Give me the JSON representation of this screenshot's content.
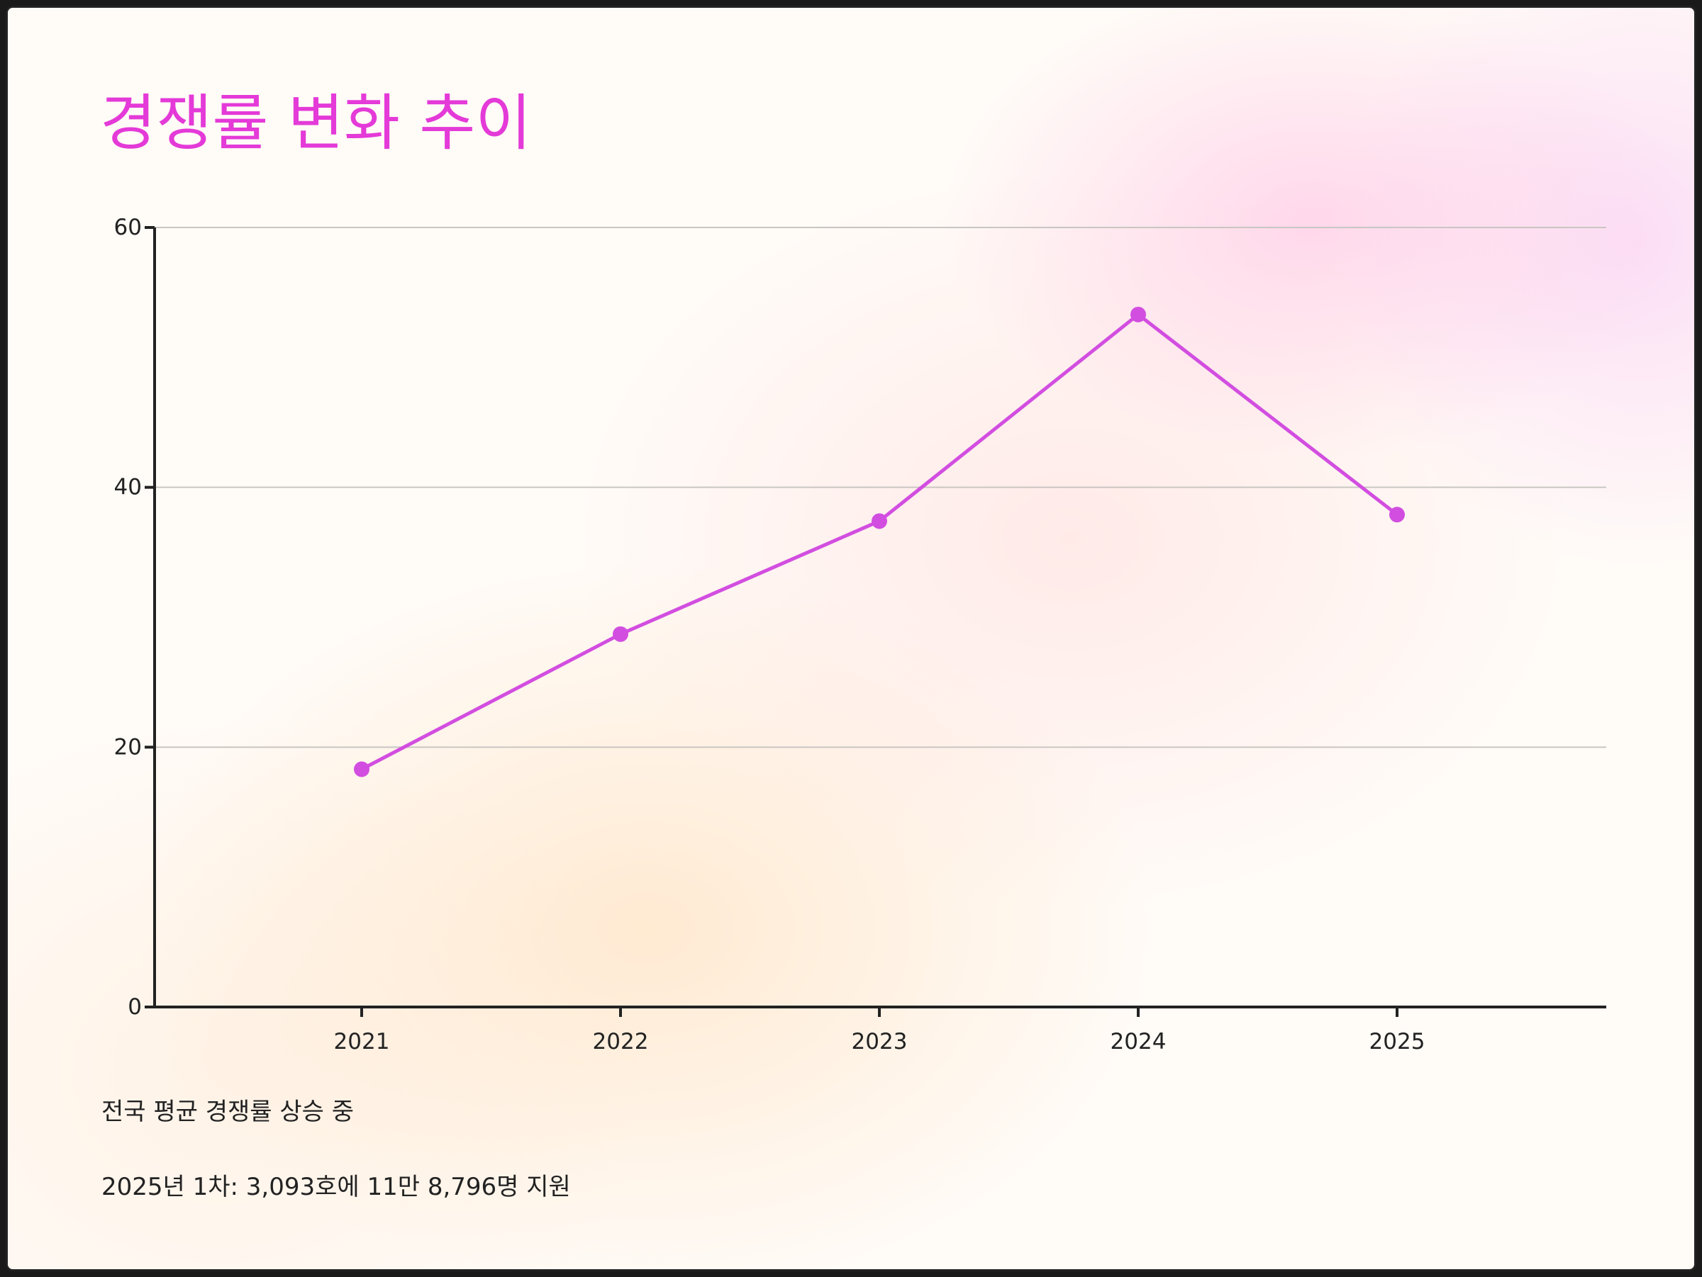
{
  "chart_data": {
    "type": "line",
    "title": "경쟁률 변화 추이",
    "x": [
      "2021",
      "2022",
      "2023",
      "2024",
      "2025"
    ],
    "series": [
      {
        "values": [
          18.3,
          28.7,
          37.4,
          53.3,
          37.9
        ]
      }
    ],
    "ylim": [
      0,
      60
    ],
    "yticks": [
      "0",
      "20",
      "40",
      "60"
    ],
    "grid": true,
    "colors": {
      "line": "#d24ee0",
      "title": "#e43ad8"
    }
  },
  "notes": [
    "전국 평균 경쟁률 상승 중",
    "2025년 1차: 3,093호에 11만 8,796명 지원"
  ]
}
